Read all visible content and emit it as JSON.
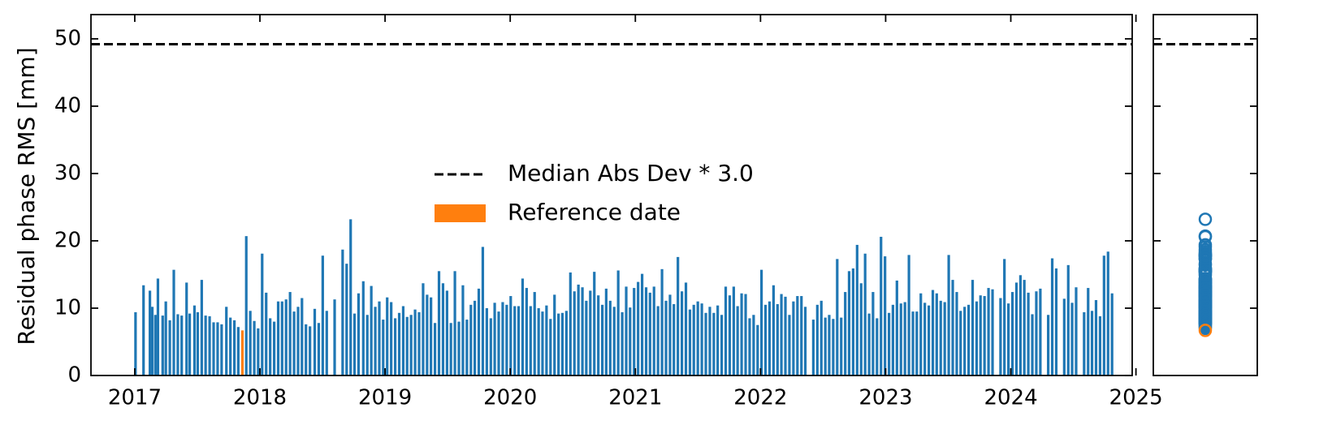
{
  "chart_data": {
    "type": "bar",
    "ylabel": "Residual phase RMS [mm]",
    "color": "#1f77b4",
    "xlim": [
      2016.65,
      2024.97
    ],
    "xticks": [
      2017,
      2018,
      2019,
      2020,
      2021,
      2022,
      2023,
      2024,
      2025
    ],
    "ylim": [
      0,
      53.6
    ],
    "yticks": [
      0,
      10,
      20,
      30,
      40,
      50
    ],
    "threshold": {
      "name": "Median Abs Dev * 3.0",
      "value": 49.2,
      "color": "#000000"
    },
    "reference": {
      "name": "Reference date",
      "x": 2017.86,
      "value": 6.7,
      "color": "#ff7f0e"
    },
    "x": [
      2017.006,
      2017.07,
      2017.121,
      2017.14,
      2017.165,
      2017.185,
      2017.223,
      2017.248,
      2017.28,
      2017.312,
      2017.344,
      2017.375,
      2017.414,
      2017.439,
      2017.477,
      2017.503,
      2017.535,
      2017.566,
      2017.598,
      2017.63,
      2017.662,
      2017.694,
      2017.732,
      2017.764,
      2017.796,
      2017.827,
      2017.891,
      2017.923,
      2017.955,
      2017.986,
      2018.018,
      2018.05,
      2018.082,
      2018.114,
      2018.146,
      2018.177,
      2018.209,
      2018.241,
      2018.273,
      2018.305,
      2018.336,
      2018.368,
      2018.4,
      2018.438,
      2018.47,
      2018.502,
      2018.534,
      2018.597,
      2018.661,
      2018.693,
      2018.725,
      2018.756,
      2018.788,
      2018.826,
      2018.858,
      2018.89,
      2018.922,
      2018.954,
      2018.985,
      2019.017,
      2019.049,
      2019.081,
      2019.113,
      2019.145,
      2019.176,
      2019.208,
      2019.24,
      2019.272,
      2019.304,
      2019.336,
      2019.367,
      2019.399,
      2019.431,
      2019.463,
      2019.495,
      2019.526,
      2019.558,
      2019.59,
      2019.622,
      2019.654,
      2019.686,
      2019.717,
      2019.749,
      2019.781,
      2019.813,
      2019.845,
      2019.876,
      2019.908,
      2019.94,
      2019.972,
      2020.004,
      2020.036,
      2020.067,
      2020.099,
      2020.131,
      2020.163,
      2020.195,
      2020.227,
      2020.258,
      2020.29,
      2020.322,
      2020.354,
      2020.386,
      2020.417,
      2020.449,
      2020.481,
      2020.513,
      2020.545,
      2020.577,
      2020.608,
      2020.64,
      2020.672,
      2020.704,
      2020.736,
      2020.767,
      2020.799,
      2020.831,
      2020.863,
      2020.895,
      2020.927,
      2020.958,
      2020.99,
      2021.022,
      2021.054,
      2021.086,
      2021.117,
      2021.149,
      2021.181,
      2021.213,
      2021.245,
      2021.277,
      2021.308,
      2021.34,
      2021.372,
      2021.404,
      2021.436,
      2021.467,
      2021.499,
      2021.531,
      2021.563,
      2021.595,
      2021.627,
      2021.658,
      2021.69,
      2021.722,
      2021.754,
      2021.786,
      2021.817,
      2021.849,
      2021.881,
      2021.913,
      2021.945,
      2021.977,
      2022.008,
      2022.04,
      2022.072,
      2022.104,
      2022.136,
      2022.167,
      2022.199,
      2022.231,
      2022.263,
      2022.295,
      2022.327,
      2022.358,
      2022.422,
      2022.454,
      2022.486,
      2022.518,
      2022.549,
      2022.581,
      2022.613,
      2022.645,
      2022.677,
      2022.708,
      2022.74,
      2022.772,
      2022.804,
      2022.836,
      2022.868,
      2022.899,
      2022.931,
      2022.963,
      2022.995,
      2023.027,
      2023.058,
      2023.09,
      2023.122,
      2023.154,
      2023.186,
      2023.218,
      2023.249,
      2023.281,
      2023.313,
      2023.345,
      2023.377,
      2023.408,
      2023.44,
      2023.472,
      2023.504,
      2023.536,
      2023.568,
      2023.599,
      2023.631,
      2023.663,
      2023.695,
      2023.727,
      2023.758,
      2023.79,
      2023.822,
      2023.854,
      2023.918,
      2023.949,
      2023.981,
      2024.013,
      2024.045,
      2024.077,
      2024.108,
      2024.14,
      2024.172,
      2024.204,
      2024.236,
      2024.299,
      2024.331,
      2024.363,
      2024.427,
      2024.459,
      2024.49,
      2024.522,
      2024.586,
      2024.618,
      2024.649,
      2024.681,
      2024.713,
      2024.745,
      2024.777,
      2024.809
    ],
    "values": [
      9.4,
      13.4,
      12.6,
      10.2,
      9.0,
      14.4,
      8.9,
      11.0,
      8.2,
      15.7,
      9.1,
      8.9,
      13.8,
      9.2,
      10.4,
      9.4,
      14.2,
      8.9,
      8.8,
      7.9,
      7.9,
      7.6,
      10.2,
      8.6,
      8.2,
      7.2,
      20.7,
      9.6,
      8.1,
      7.0,
      18.1,
      12.3,
      8.5,
      8.0,
      11.0,
      11.0,
      11.3,
      12.4,
      9.5,
      10.2,
      11.5,
      7.6,
      7.3,
      9.9,
      7.8,
      17.8,
      9.6,
      11.3,
      18.7,
      16.6,
      23.2,
      9.2,
      12.2,
      14.0,
      9.0,
      13.3,
      10.2,
      11.0,
      8.3,
      11.6,
      10.9,
      8.5,
      9.3,
      10.3,
      8.7,
      9.0,
      9.8,
      9.4,
      13.7,
      12.0,
      11.6,
      7.8,
      15.5,
      13.7,
      12.6,
      7.8,
      15.5,
      8.0,
      13.4,
      8.3,
      10.5,
      11.1,
      12.9,
      19.1,
      10.0,
      8.5,
      10.8,
      9.5,
      10.9,
      10.5,
      11.8,
      10.3,
      10.3,
      14.4,
      13.0,
      10.3,
      12.4,
      10.0,
      9.5,
      10.4,
      8.4,
      12.0,
      9.2,
      9.3,
      9.6,
      15.3,
      12.5,
      13.5,
      13.1,
      11.1,
      12.6,
      15.4,
      11.9,
      10.5,
      12.9,
      11.1,
      10.2,
      15.6,
      9.4,
      13.2,
      10.1,
      13.0,
      13.9,
      15.1,
      13.1,
      12.3,
      13.2,
      10.3,
      15.8,
      11.1,
      12.0,
      10.6,
      17.6,
      12.5,
      13.8,
      9.8,
      10.5,
      11.0,
      10.7,
      9.3,
      10.2,
      9.3,
      10.4,
      9.0,
      13.2,
      11.9,
      13.2,
      10.3,
      12.2,
      12.1,
      8.5,
      9.0,
      7.5,
      15.7,
      10.5,
      11.0,
      13.4,
      10.6,
      12.1,
      11.7,
      9.0,
      11.0,
      11.8,
      11.8,
      10.2,
      8.3,
      10.5,
      11.1,
      8.6,
      9.0,
      8.4,
      17.3,
      8.6,
      12.4,
      15.5,
      15.9,
      19.4,
      13.7,
      18.1,
      9.2,
      12.4,
      8.5,
      20.6,
      17.7,
      9.3,
      10.5,
      14.1,
      10.7,
      10.9,
      17.9,
      9.5,
      9.5,
      12.2,
      10.8,
      10.4,
      12.7,
      12.2,
      11.1,
      10.9,
      17.9,
      14.2,
      12.4,
      9.6,
      10.2,
      10.5,
      14.2,
      11.0,
      11.9,
      11.8,
      13.0,
      12.8,
      11.5,
      17.3,
      10.7,
      12.4,
      13.8,
      14.9,
      14.2,
      12.3,
      9.1,
      12.5,
      12.9,
      9.0,
      17.4,
      15.9,
      11.4,
      16.4,
      10.8,
      13.1,
      9.4,
      13.0,
      9.6,
      11.2,
      8.8,
      17.8,
      18.4,
      12.2
    ]
  }
}
